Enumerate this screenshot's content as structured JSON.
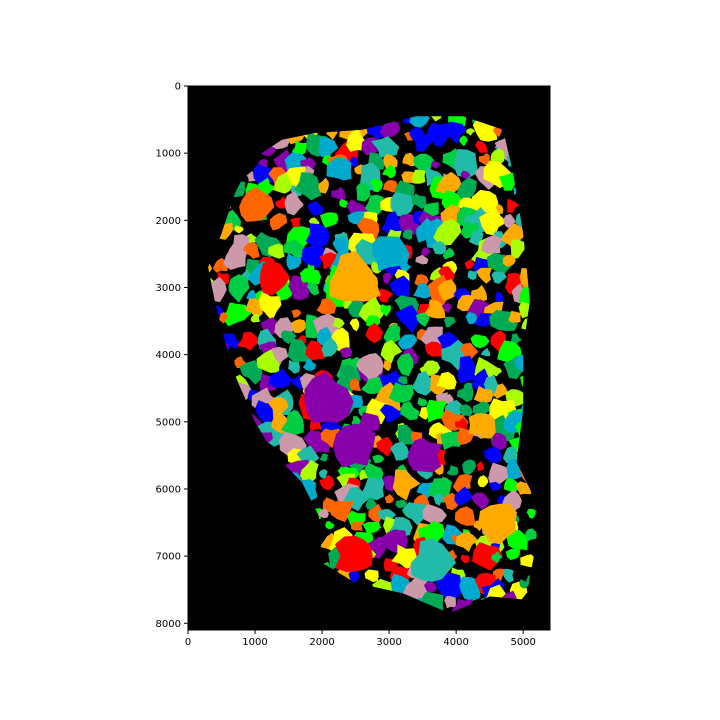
{
  "chart_data": {
    "type": "heatmap",
    "title": "",
    "xlabel": "",
    "ylabel": "",
    "xlim": [
      0,
      5400
    ],
    "ylim": [
      8100,
      0
    ],
    "xticks": [
      {
        "value": 0,
        "label": "0"
      },
      {
        "value": 1000,
        "label": "1000"
      },
      {
        "value": 2000,
        "label": "2000"
      },
      {
        "value": 3000,
        "label": "3000"
      },
      {
        "value": 4000,
        "label": "4000"
      },
      {
        "value": 5000,
        "label": "5000"
      }
    ],
    "yticks": [
      {
        "value": 0,
        "label": "0"
      },
      {
        "value": 1000,
        "label": "1000"
      },
      {
        "value": 2000,
        "label": "2000"
      },
      {
        "value": 3000,
        "label": "3000"
      },
      {
        "value": 4000,
        "label": "4000"
      },
      {
        "value": 5000,
        "label": "5000"
      },
      {
        "value": 6000,
        "label": "6000"
      },
      {
        "value": 7000,
        "label": "7000"
      },
      {
        "value": 8000,
        "label": "8000"
      }
    ],
    "background_color": "#000000",
    "palette": [
      "#ff0000",
      "#ffaa00",
      "#ffff00",
      "#00cc44",
      "#00aa55",
      "#00aacc",
      "#0000ff",
      "#8800aa",
      "#cc99aa",
      "#00ff00",
      "#ff6600",
      "#22bbaa",
      "#aaff00"
    ],
    "tissue_outline": [
      [
        1100,
        1000
      ],
      [
        1400,
        800
      ],
      [
        1900,
        700
      ],
      [
        2600,
        650
      ],
      [
        3400,
        450
      ],
      [
        4100,
        450
      ],
      [
        4700,
        650
      ],
      [
        4850,
        1300
      ],
      [
        5000,
        2200
      ],
      [
        5100,
        3200
      ],
      [
        5000,
        3900
      ],
      [
        5000,
        4800
      ],
      [
        4900,
        5600
      ],
      [
        5200,
        6200
      ],
      [
        5200,
        6800
      ],
      [
        5100,
        7300
      ],
      [
        5050,
        7650
      ],
      [
        4500,
        7600
      ],
      [
        3900,
        7850
      ],
      [
        3200,
        7550
      ],
      [
        2500,
        7400
      ],
      [
        2000,
        7100
      ],
      [
        1950,
        6400
      ],
      [
        1700,
        5900
      ],
      [
        1300,
        5500
      ],
      [
        1000,
        5000
      ],
      [
        700,
        4300
      ],
      [
        550,
        3800
      ],
      [
        400,
        3200
      ],
      [
        300,
        2700
      ],
      [
        500,
        2200
      ],
      [
        700,
        1600
      ],
      [
        900,
        1200
      ]
    ]
  }
}
